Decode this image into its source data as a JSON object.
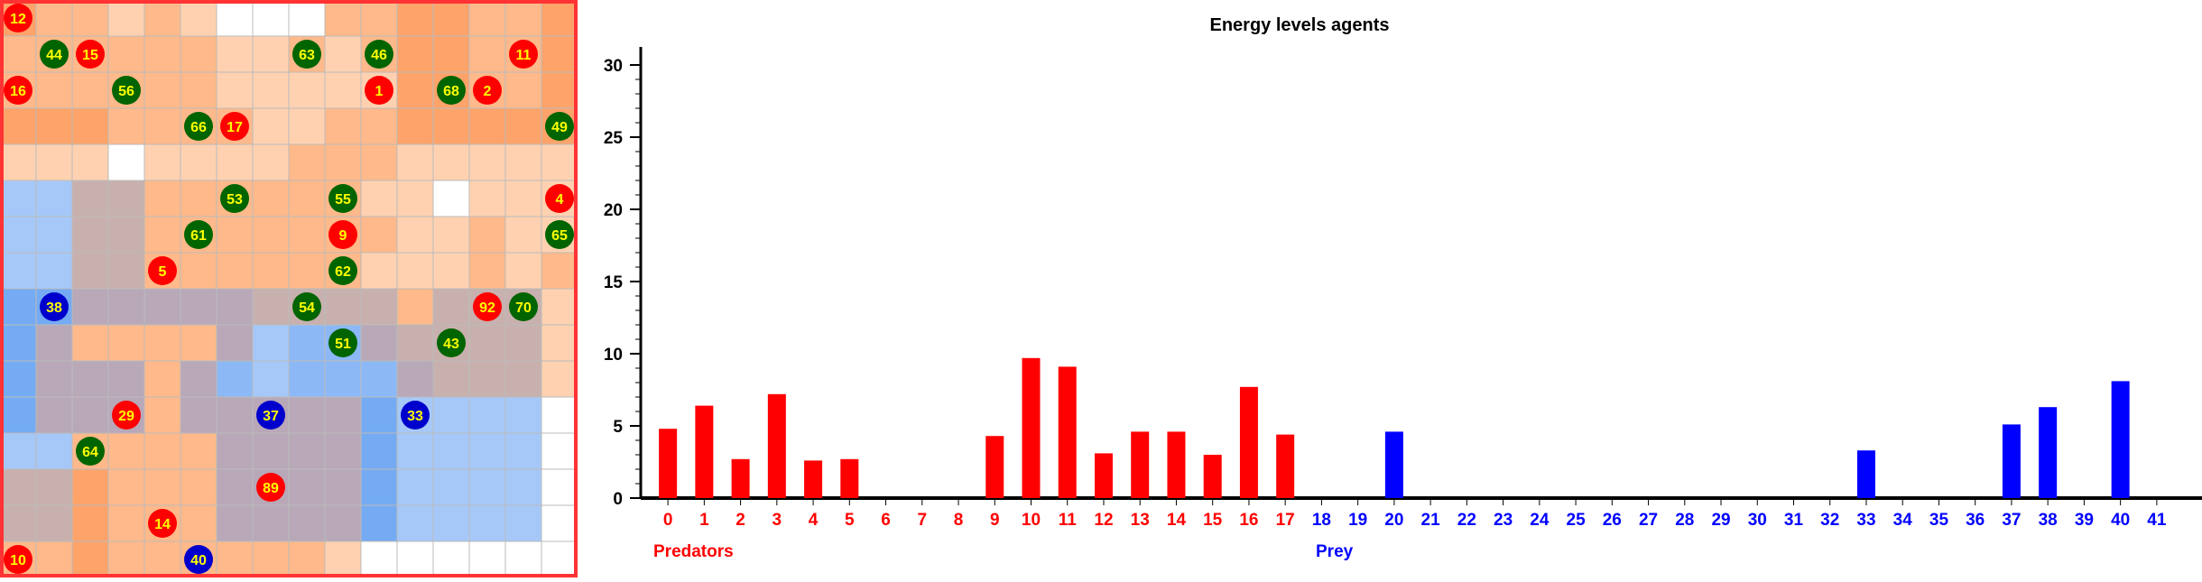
{
  "colors": {
    "predator": "#ff0000",
    "prey": "#0000ff",
    "prey_token": "#0000cc",
    "food_agent": "#006400",
    "token_label": "#ffff00",
    "grid_border": "#ff3333",
    "grid_line": "#bbbbbb"
  },
  "grid": {
    "rows": 16,
    "cols": 16,
    "palette": {
      "W": "#ffffff",
      "L": "#ffd1b0",
      "M": "#ffb98a",
      "D": "#fea36a",
      "G": "#d8b7a8",
      "H": "#c8b0ae",
      "I": "#b8a8b8",
      "P": "#a6c8f8",
      "Q": "#8cb8f6",
      "B": "#74abf3"
    },
    "cells": [
      "DMMLMLWWWMMDDMMD",
      "MMMMMMLLMLMDDMMD",
      "MMMMMMLLLLLDDMMD",
      "DDDMMMMLLMMDDDDD",
      "LLLWLLLLMMMLLLLL",
      "PPHHMMMMMMLLWLLL",
      "PPHHMMMMMMMLLMLL",
      "PPHHMMMMMMLLLMLM",
      "BBIIIIIHHHHMHHHL",
      "BIMMMMIPQQIHHHHL",
      "BIIIMIQPQQQIHHHL",
      "BIIIMIIIIIBPPPPW",
      "PPMMMMIIIIBPPPPW",
      "HHDMMMIIIIBPPPPW",
      "HHDMMMIIIIBPPPPW",
      "MMDMMMMMMLWWWWWW"
    ],
    "tokens": [
      {
        "label": "12",
        "kind": "predator",
        "row": 0,
        "col": 0
      },
      {
        "label": "44",
        "kind": "food",
        "row": 1,
        "col": 1
      },
      {
        "label": "15",
        "kind": "predator",
        "row": 1,
        "col": 2
      },
      {
        "label": "63",
        "kind": "food",
        "row": 1,
        "col": 8
      },
      {
        "label": "46",
        "kind": "food",
        "row": 1,
        "col": 10
      },
      {
        "label": "11",
        "kind": "predator",
        "row": 1,
        "col": 14
      },
      {
        "label": "16",
        "kind": "predator",
        "row": 2,
        "col": 0
      },
      {
        "label": "56",
        "kind": "food",
        "row": 2,
        "col": 3
      },
      {
        "label": "1",
        "kind": "predator",
        "row": 2,
        "col": 10
      },
      {
        "label": "68",
        "kind": "food",
        "row": 2,
        "col": 12
      },
      {
        "label": "2",
        "kind": "predator",
        "row": 2,
        "col": 13
      },
      {
        "label": "66",
        "kind": "food",
        "row": 3,
        "col": 5
      },
      {
        "label": "17",
        "kind": "predator",
        "row": 3,
        "col": 6
      },
      {
        "label": "49",
        "kind": "food",
        "row": 3,
        "col": 15
      },
      {
        "label": "53",
        "kind": "food",
        "row": 5,
        "col": 6
      },
      {
        "label": "55",
        "kind": "food",
        "row": 5,
        "col": 9
      },
      {
        "label": "4",
        "kind": "predator",
        "row": 5,
        "col": 15
      },
      {
        "label": "61",
        "kind": "food",
        "row": 6,
        "col": 5
      },
      {
        "label": "9",
        "kind": "predator",
        "row": 6,
        "col": 9
      },
      {
        "label": "65",
        "kind": "food",
        "row": 6,
        "col": 15
      },
      {
        "label": "5",
        "kind": "predator",
        "row": 7,
        "col": 4
      },
      {
        "label": "62",
        "kind": "food",
        "row": 7,
        "col": 9
      },
      {
        "label": "38",
        "kind": "prey",
        "row": 8,
        "col": 1
      },
      {
        "label": "54",
        "kind": "food",
        "row": 8,
        "col": 8
      },
      {
        "label": "92",
        "kind": "predator",
        "row": 8,
        "col": 13
      },
      {
        "label": "70",
        "kind": "food",
        "row": 8,
        "col": 14
      },
      {
        "label": "51",
        "kind": "food",
        "row": 9,
        "col": 9
      },
      {
        "label": "43",
        "kind": "food",
        "row": 9,
        "col": 12
      },
      {
        "label": "29",
        "kind": "predator",
        "row": 11,
        "col": 3
      },
      {
        "label": "37",
        "kind": "prey",
        "row": 11,
        "col": 7
      },
      {
        "label": "33",
        "kind": "prey",
        "row": 11,
        "col": 11
      },
      {
        "label": "64",
        "kind": "food",
        "row": 12,
        "col": 2
      },
      {
        "label": "89",
        "kind": "predator",
        "row": 13,
        "col": 7
      },
      {
        "label": "14",
        "kind": "predator",
        "row": 14,
        "col": 4
      },
      {
        "label": "10",
        "kind": "predator",
        "row": 15,
        "col": 0
      },
      {
        "label": "40",
        "kind": "prey",
        "row": 15,
        "col": 5
      }
    ]
  },
  "chart_data": {
    "type": "bar",
    "title": "Energy levels agents",
    "categories": [
      "0",
      "1",
      "2",
      "3",
      "4",
      "5",
      "6",
      "7",
      "8",
      "9",
      "10",
      "11",
      "12",
      "13",
      "14",
      "15",
      "16",
      "17",
      "18",
      "19",
      "20",
      "21",
      "22",
      "23",
      "24",
      "25",
      "26",
      "27",
      "28",
      "29",
      "30",
      "31",
      "32",
      "33",
      "34",
      "35",
      "36",
      "37",
      "38",
      "39",
      "40",
      "41"
    ],
    "series": [
      {
        "name": "Predators",
        "color": "#ff0000",
        "values": [
          4.8,
          6.4,
          2.7,
          7.2,
          2.6,
          2.7,
          0,
          0,
          0,
          4.3,
          9.7,
          9.1,
          3.1,
          4.6,
          4.6,
          3.0,
          7.7,
          4.4,
          null,
          null,
          null,
          null,
          null,
          null,
          null,
          null,
          null,
          null,
          null,
          null,
          null,
          null,
          null,
          null,
          null,
          null,
          null,
          null,
          null,
          null,
          null,
          null
        ]
      },
      {
        "name": "Prey",
        "color": "#0000ff",
        "values": [
          null,
          null,
          null,
          null,
          null,
          null,
          null,
          null,
          null,
          null,
          null,
          null,
          null,
          null,
          null,
          null,
          null,
          null,
          0,
          0,
          4.6,
          0,
          0,
          0,
          0,
          0,
          0,
          0,
          0,
          0,
          0,
          0,
          0,
          3.3,
          0,
          0,
          0,
          5.1,
          6.3,
          0,
          8.1,
          0
        ]
      }
    ],
    "predator_count": 18,
    "ylim": [
      0,
      30
    ],
    "yticks": [
      "0",
      "5",
      "10",
      "15",
      "20",
      "25",
      "30"
    ],
    "xlabel": "",
    "ylabel": "",
    "grid": false,
    "legend": [
      {
        "label": "Predators",
        "position": "bottom-left"
      },
      {
        "label": "Prey",
        "position": "bottom-center"
      }
    ]
  }
}
